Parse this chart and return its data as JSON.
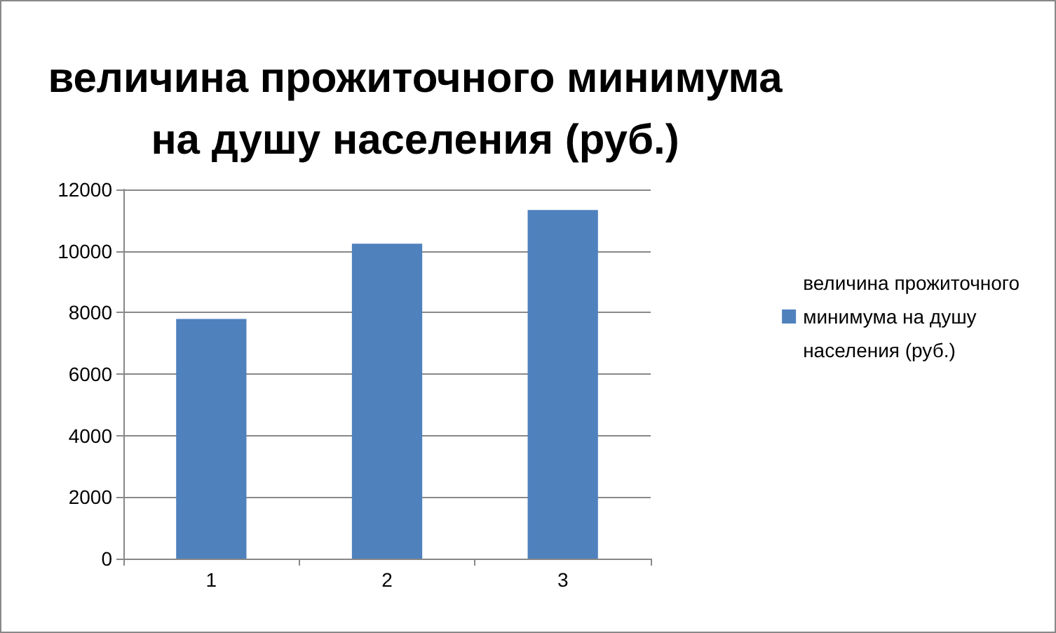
{
  "chart_data": {
    "type": "bar",
    "title": "величина прожиточного минимума\nна душу населения (руб.)",
    "categories": [
      "1",
      "2",
      "3"
    ],
    "series": [
      {
        "name": "величина прожиточного минимума на душу населения (руб.)",
        "color": "#4f81bd",
        "values": [
          7790,
          10240,
          11330
        ]
      }
    ],
    "ylim": [
      0,
      12000
    ],
    "yticks": [
      0,
      2000,
      4000,
      6000,
      8000,
      10000,
      12000
    ],
    "grid": "y",
    "legend": "right"
  }
}
